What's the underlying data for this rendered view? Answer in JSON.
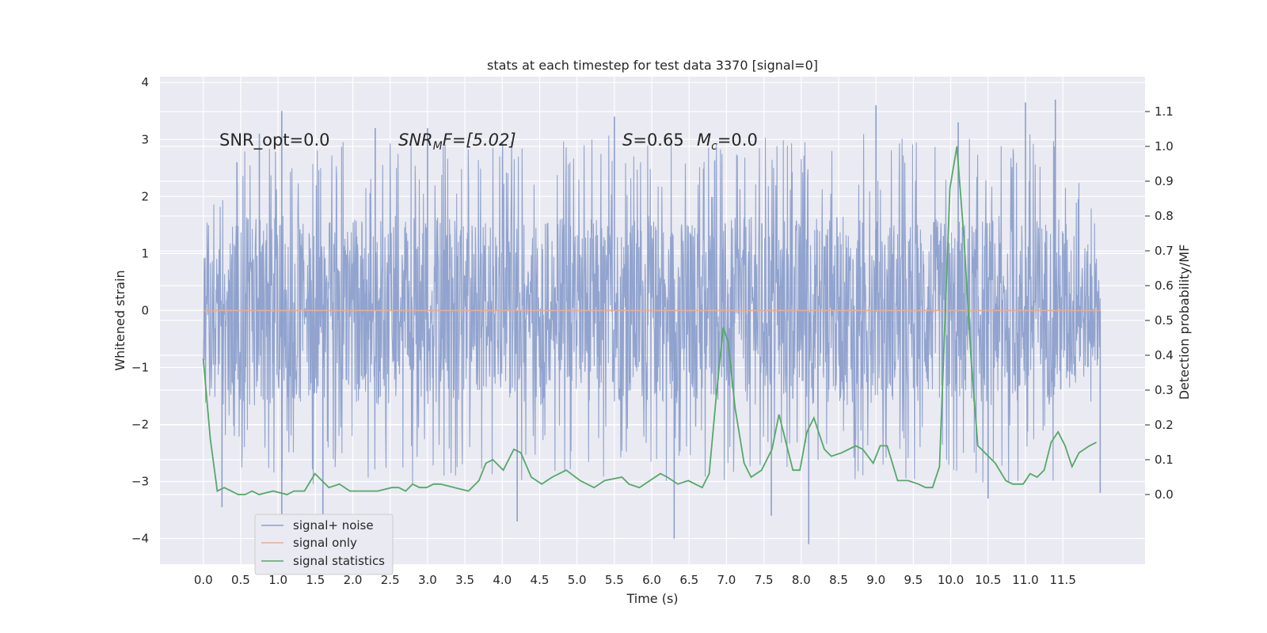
{
  "chart_data": {
    "type": "line",
    "title": "stats at each timestep for test data 3370 [signal=0]",
    "xlabel": "Time (s)",
    "ylabel": "Whitened strain",
    "ylabel_right": "Detection probability/MF",
    "xlim": [
      -0.58,
      12.6
    ],
    "ylim": [
      -4.45,
      4.1
    ],
    "ylim_right": [
      -0.2,
      1.2
    ],
    "x_ticks": [
      "0.0",
      "0.5",
      "1.0",
      "1.5",
      "2.0",
      "2.5",
      "3.0",
      "3.5",
      "4.0",
      "4.5",
      "5.0",
      "5.5",
      "6.0",
      "6.5",
      "7.0",
      "7.5",
      "8.0",
      "8.5",
      "9.0",
      "9.5",
      "10.0",
      "10.5",
      "11.0",
      "11.5"
    ],
    "y_ticks": [
      "4",
      "3",
      "2",
      "1",
      "0",
      "−1",
      "−2",
      "−3",
      "−4"
    ],
    "y_right_ticks": [
      "1.1",
      "1.0",
      "0.9",
      "0.8",
      "0.7",
      "0.6",
      "0.5",
      "0.4",
      "0.3",
      "0.2",
      "0.1",
      "0.0"
    ],
    "grid": true,
    "legend_position": "lower-left",
    "annotations": {
      "snr_opt": "SNR_opt=0.0",
      "snr_mf_sym": "SNR",
      "snr_mf_sub": "M",
      "snr_mf_rest": "F=[5.02]",
      "s_sym": "S",
      "s_rest": "=0.65",
      "mc_sym": "M",
      "mc_sub": "c",
      "mc_rest": "=0.0"
    },
    "series": [
      {
        "name": "signal+ noise",
        "color": "#8c9fcb",
        "x_range": [
          0.0,
          12.0
        ],
        "envelope_upper": [
          [
            0.0,
            1.3
          ],
          [
            0.5,
            2.4
          ],
          [
            1.0,
            2.3
          ],
          [
            1.5,
            2.3
          ],
          [
            2.0,
            2.3
          ],
          [
            2.5,
            2.4
          ],
          [
            3.0,
            2.3
          ],
          [
            3.5,
            2.3
          ],
          [
            4.0,
            2.3
          ],
          [
            4.5,
            2.3
          ],
          [
            5.0,
            2.3
          ],
          [
            5.5,
            2.4
          ],
          [
            6.0,
            2.3
          ],
          [
            6.5,
            2.3
          ],
          [
            7.0,
            2.3
          ],
          [
            7.5,
            2.4
          ],
          [
            8.0,
            2.3
          ],
          [
            8.5,
            2.4
          ],
          [
            9.0,
            2.4
          ],
          [
            9.5,
            2.3
          ],
          [
            10.0,
            2.3
          ],
          [
            10.5,
            2.4
          ],
          [
            11.0,
            2.4
          ],
          [
            11.5,
            2.4
          ],
          [
            12.0,
            1.3
          ]
        ],
        "envelope_lower": [
          [
            0.0,
            -1.3
          ],
          [
            0.5,
            -2.4
          ],
          [
            1.0,
            -2.4
          ],
          [
            1.5,
            -2.4
          ],
          [
            2.0,
            -2.3
          ],
          [
            2.5,
            -2.3
          ],
          [
            3.0,
            -2.4
          ],
          [
            3.5,
            -2.3
          ],
          [
            4.0,
            -2.3
          ],
          [
            4.5,
            -2.4
          ],
          [
            5.0,
            -2.3
          ],
          [
            5.5,
            -2.3
          ],
          [
            6.0,
            -2.4
          ],
          [
            6.5,
            -2.3
          ],
          [
            7.0,
            -2.3
          ],
          [
            7.5,
            -2.4
          ],
          [
            8.0,
            -2.4
          ],
          [
            8.5,
            -2.4
          ],
          [
            9.0,
            -2.3
          ],
          [
            9.5,
            -2.3
          ],
          [
            10.0,
            -2.3
          ],
          [
            10.5,
            -2.4
          ],
          [
            11.0,
            -2.3
          ],
          [
            11.5,
            -2.4
          ],
          [
            12.0,
            -1.3
          ]
        ],
        "peaks": [
          [
            0.45,
            2.6
          ],
          [
            0.75,
            3.1
          ],
          [
            1.05,
            3.5
          ],
          [
            2.3,
            3.2
          ],
          [
            3.0,
            3.2
          ],
          [
            5.5,
            3.4
          ],
          [
            9.0,
            3.6
          ],
          [
            11.0,
            3.65
          ],
          [
            11.4,
            3.7
          ],
          [
            10.1,
            3.3
          ],
          [
            1.6,
            -3.6
          ],
          [
            1.05,
            -3.75
          ],
          [
            4.2,
            -3.7
          ],
          [
            6.3,
            -4.0
          ],
          [
            8.1,
            -4.1
          ],
          [
            7.6,
            -3.6
          ],
          [
            0.25,
            -3.45
          ],
          [
            10.5,
            -3.3
          ],
          [
            12.0,
            -3.2
          ]
        ]
      },
      {
        "name": "signal only",
        "color": "#e5ae95",
        "points": [
          [
            0.0,
            0.0
          ],
          [
            12.0,
            0.0
          ]
        ]
      },
      {
        "name": "signal statistics",
        "color": "#55a868",
        "axis": "right",
        "points": [
          [
            0.0,
            0.39
          ],
          [
            0.1,
            0.16
          ],
          [
            0.2,
            0.01
          ],
          [
            0.3,
            0.02
          ],
          [
            0.4,
            0.01
          ],
          [
            0.5,
            0.0
          ],
          [
            0.6,
            0.0
          ],
          [
            0.7,
            0.01
          ],
          [
            0.8,
            0.0
          ],
          [
            1.0,
            0.01
          ],
          [
            1.2,
            0.0
          ],
          [
            1.3,
            0.01
          ],
          [
            1.45,
            0.01
          ],
          [
            1.6,
            0.06
          ],
          [
            1.7,
            0.04
          ],
          [
            1.8,
            0.02
          ],
          [
            1.95,
            0.03
          ],
          [
            2.1,
            0.01
          ],
          [
            2.3,
            0.01
          ],
          [
            2.5,
            0.01
          ],
          [
            2.7,
            0.02
          ],
          [
            2.8,
            0.02
          ],
          [
            2.9,
            0.01
          ],
          [
            3.0,
            0.03
          ],
          [
            3.1,
            0.02
          ],
          [
            3.2,
            0.02
          ],
          [
            3.3,
            0.03
          ],
          [
            3.4,
            0.03
          ],
          [
            3.6,
            0.02
          ],
          [
            3.8,
            0.01
          ],
          [
            3.95,
            0.04
          ],
          [
            4.05,
            0.09
          ],
          [
            4.15,
            0.1
          ],
          [
            4.3,
            0.07
          ],
          [
            4.45,
            0.13
          ],
          [
            4.55,
            0.12
          ],
          [
            4.7,
            0.05
          ],
          [
            4.85,
            0.03
          ],
          [
            5.0,
            0.05
          ],
          [
            5.2,
            0.07
          ],
          [
            5.4,
            0.04
          ],
          [
            5.6,
            0.02
          ],
          [
            5.75,
            0.04
          ],
          [
            6.0,
            0.05
          ],
          [
            6.1,
            0.03
          ],
          [
            6.25,
            0.02
          ],
          [
            6.4,
            0.04
          ],
          [
            6.55,
            0.06
          ],
          [
            6.65,
            0.05
          ],
          [
            6.8,
            0.03
          ],
          [
            6.95,
            0.04
          ],
          [
            7.05,
            0.03
          ],
          [
            7.15,
            0.02
          ],
          [
            7.25,
            0.06
          ],
          [
            7.35,
            0.28
          ],
          [
            7.45,
            0.48
          ],
          [
            7.52,
            0.44
          ],
          [
            7.62,
            0.25
          ],
          [
            7.75,
            0.09
          ],
          [
            7.85,
            0.05
          ],
          [
            8.0,
            0.07
          ],
          [
            8.15,
            0.13
          ],
          [
            8.25,
            0.23
          ],
          [
            8.35,
            0.15
          ],
          [
            8.45,
            0.07
          ],
          [
            8.55,
            0.07
          ],
          [
            8.65,
            0.18
          ],
          [
            8.75,
            0.22
          ],
          [
            8.9,
            0.13
          ],
          [
            9.0,
            0.11
          ],
          [
            9.15,
            0.12
          ],
          [
            9.35,
            0.14
          ],
          [
            9.45,
            0.13
          ],
          [
            9.6,
            0.09
          ],
          [
            9.7,
            0.14
          ],
          [
            9.8,
            0.14
          ],
          [
            9.95,
            0.04
          ],
          [
            10.1,
            0.04
          ],
          [
            10.25,
            0.03
          ],
          [
            10.35,
            0.02
          ],
          [
            10.45,
            0.02
          ],
          [
            10.55,
            0.08
          ],
          [
            10.7,
            0.88
          ],
          [
            10.8,
            1.0
          ],
          [
            10.9,
            0.74
          ],
          [
            11.0,
            0.4
          ],
          [
            11.1,
            0.14
          ],
          [
            11.2,
            0.12
          ],
          [
            11.35,
            0.09
          ],
          [
            11.5,
            0.04
          ],
          [
            11.6,
            0.03
          ],
          [
            11.75,
            0.03
          ],
          [
            11.85,
            0.06
          ],
          [
            11.95,
            0.05
          ],
          [
            12.05,
            0.07
          ],
          [
            12.15,
            0.15
          ],
          [
            12.25,
            0.18
          ],
          [
            12.35,
            0.14
          ],
          [
            12.45,
            0.08
          ],
          [
            12.55,
            0.12
          ],
          [
            12.7,
            0.14
          ],
          [
            12.8,
            0.15
          ]
        ]
      }
    ]
  }
}
